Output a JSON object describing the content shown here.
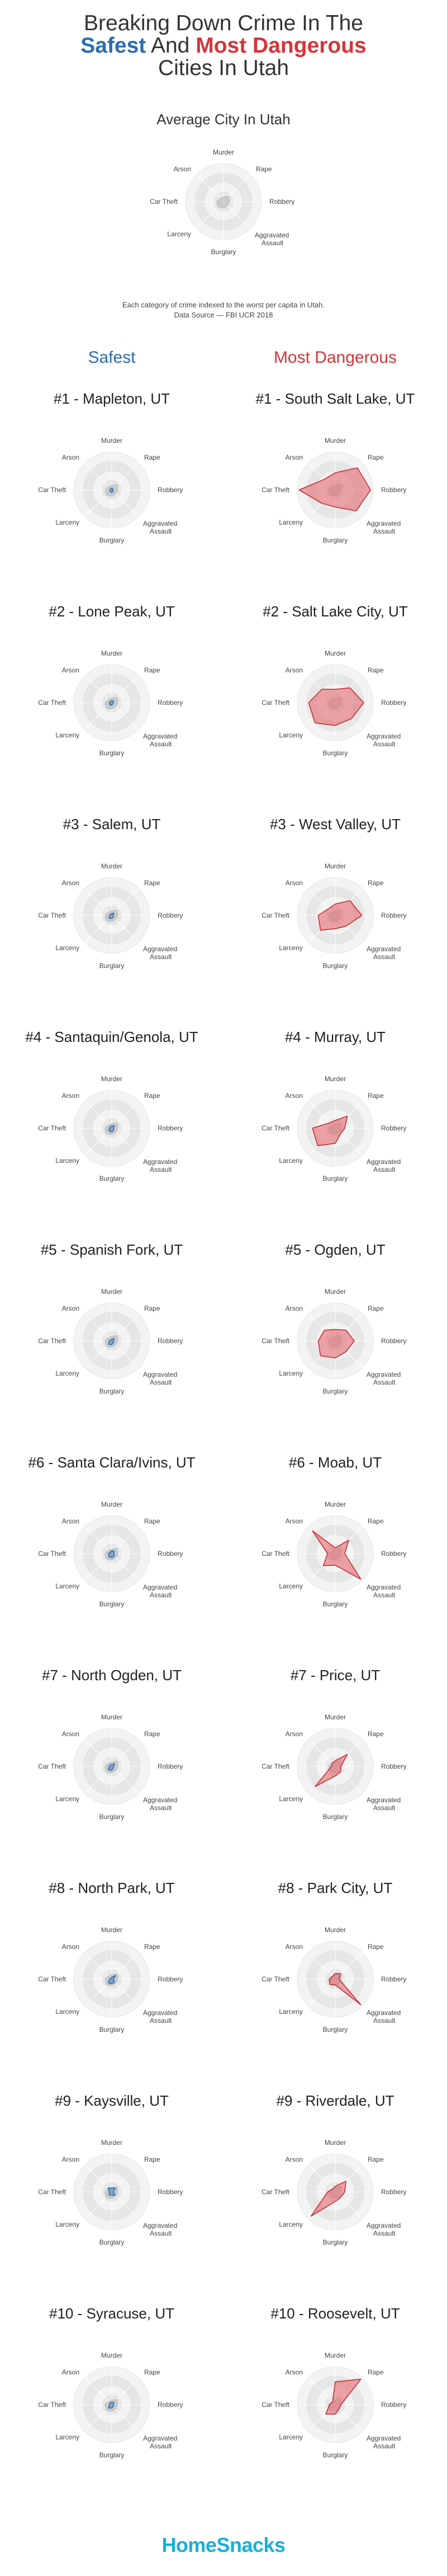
{
  "header": {
    "line1": "Breaking Down Crime In The",
    "safest": "Safest",
    "and": " And ",
    "most_dangerous": "Most Dangerous",
    "line3": "Cities In Utah"
  },
  "average": {
    "title": "Average City In Utah",
    "note_line1": "Each category of crime indexed to the worst per capita in Utah.",
    "note_line2": "Data Source — FBI UCR 2018"
  },
  "columns": {
    "safest": "Safest",
    "dangerous": "Most Dangerous"
  },
  "footer": {
    "brand": "HomeSnacks"
  },
  "colors": {
    "safe_stroke": "#2b6cb0",
    "safe_fill": "#5b8fd0",
    "danger_stroke": "#c62f35",
    "danger_fill": "#e36a70",
    "avg_fill": "#bdbdbd",
    "ring_dark": "#e6e6e6",
    "ring_light": "#f3f3f3"
  },
  "chart_data": {
    "type": "radar",
    "axes": [
      "Murder",
      "Rape",
      "Robbery",
      "Aggravated Assault",
      "Burglary",
      "Larceny",
      "Car Theft",
      "Arson"
    ],
    "scale_max": 1.0,
    "average": {
      "name": "Average City In Utah",
      "values": [
        0.12,
        0.2,
        0.16,
        0.15,
        0.17,
        0.2,
        0.18,
        0.12
      ]
    },
    "safest": [
      {
        "title": "#1 - Mapleton, UT",
        "values": [
          0.05,
          0.04,
          0.03,
          0.05,
          0.07,
          0.06,
          0.05,
          0.04
        ]
      },
      {
        "title": "#2 - Lone Peak, UT",
        "values": [
          0.05,
          0.06,
          0.04,
          0.04,
          0.07,
          0.08,
          0.06,
          0.05
        ]
      },
      {
        "title": "#3 - Salem, UT",
        "values": [
          0.05,
          0.08,
          0.04,
          0.06,
          0.08,
          0.1,
          0.06,
          0.04
        ]
      },
      {
        "title": "#4 - Santaquin/Genola, UT",
        "values": [
          0.06,
          0.09,
          0.05,
          0.07,
          0.1,
          0.1,
          0.06,
          0.05
        ]
      },
      {
        "title": "#5 - Spanish Fork, UT",
        "values": [
          0.04,
          0.09,
          0.05,
          0.06,
          0.1,
          0.12,
          0.06,
          0.04
        ]
      },
      {
        "title": "#6 - Santa Clara/Ivins, UT",
        "values": [
          0.07,
          0.09,
          0.06,
          0.09,
          0.1,
          0.11,
          0.08,
          0.06
        ]
      },
      {
        "title": "#7 - North Ogden, UT",
        "values": [
          0.05,
          0.1,
          0.05,
          0.06,
          0.1,
          0.12,
          0.07,
          0.05
        ]
      },
      {
        "title": "#8 - North Park, UT",
        "values": [
          0.05,
          0.14,
          0.04,
          0.1,
          0.12,
          0.13,
          0.05,
          0.04
        ]
      },
      {
        "title": "#9 - Kaysville, UT",
        "values": [
          0.1,
          0.13,
          0.04,
          0.12,
          0.09,
          0.1,
          0.06,
          0.14
        ]
      },
      {
        "title": "#10 - Syracuse, UT",
        "values": [
          0.06,
          0.08,
          0.05,
          0.06,
          0.09,
          0.12,
          0.06,
          0.06
        ]
      }
    ],
    "dangerous": [
      {
        "title": "#1 - South Salt Lake, UT",
        "values": [
          0.45,
          0.82,
          0.93,
          0.78,
          0.45,
          0.5,
          0.95,
          0.4
        ]
      },
      {
        "title": "#2 - Salt Lake City, UT",
        "values": [
          0.35,
          0.55,
          0.75,
          0.6,
          0.6,
          0.75,
          0.7,
          0.5
        ]
      },
      {
        "title": "#3 - West Valley, UT",
        "values": [
          0.3,
          0.55,
          0.7,
          0.4,
          0.35,
          0.55,
          0.45,
          0.25
        ]
      },
      {
        "title": "#4 - Murray, UT",
        "values": [
          0.2,
          0.45,
          0.25,
          0.2,
          0.4,
          0.65,
          0.6,
          0.2
        ]
      },
      {
        "title": "#5 - Ogden, UT",
        "values": [
          0.3,
          0.4,
          0.5,
          0.4,
          0.45,
          0.55,
          0.45,
          0.4
        ]
      },
      {
        "title": "#6 - Moab, UT",
        "values": [
          0.15,
          0.5,
          0.25,
          0.95,
          0.3,
          0.45,
          0.2,
          0.85
        ]
      },
      {
        "title": "#7 - Price, UT",
        "values": [
          0.15,
          0.45,
          0.15,
          0.2,
          0.25,
          0.75,
          0.1,
          0.12
        ]
      },
      {
        "title": "#8 - Park City, UT",
        "values": [
          0.15,
          0.2,
          0.1,
          0.95,
          0.15,
          0.2,
          0.15,
          0.1
        ]
      },
      {
        "title": "#9 - Riverdale, UT",
        "values": [
          0.15,
          0.4,
          0.25,
          0.2,
          0.25,
          0.9,
          0.2,
          0.1
        ]
      },
      {
        "title": "#10 - Roosevelt, UT",
        "values": [
          0.6,
          0.95,
          0.15,
          0.15,
          0.25,
          0.35,
          0.15,
          0.1
        ]
      }
    ]
  }
}
